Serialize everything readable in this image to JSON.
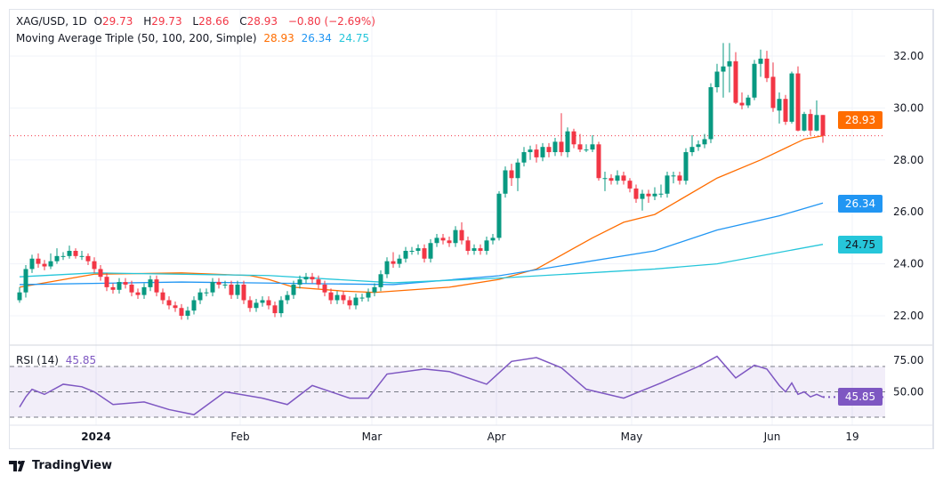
{
  "header": {
    "symbol": "XAG/USD, 1D",
    "open_label": "O",
    "open": "29.73",
    "high_label": "H",
    "high": "29.73",
    "low_label": "L",
    "low": "28.66",
    "close_label": "C",
    "close": "28.93",
    "change": "−0.80 (−2.69%)"
  },
  "ma_legend": {
    "title": "Moving Average Triple (50, 100, 200, Simple)",
    "ma50": "28.93",
    "ma100": "26.34",
    "ma200": "24.75"
  },
  "rsi_legend": {
    "title": "RSI (14)",
    "value": "45.85"
  },
  "badges": {
    "price": "28.93",
    "ma100": "26.34",
    "ma200": "24.75",
    "rsi": "45.85"
  },
  "colors": {
    "up": "#089981",
    "down": "#F23645",
    "ma50": "#FF6D00",
    "ma100": "#2196F3",
    "ma200": "#26C6DA",
    "rsi": "#7E57C2"
  },
  "time_axis": [
    "2024",
    "Feb",
    "Mar",
    "Apr",
    "May",
    "Jun",
    "19"
  ],
  "branding": "TradingView",
  "chart_data": [
    {
      "type": "candlestick",
      "title": "XAG/USD, 1D",
      "price_ticks": [
        "32.00",
        "30.00",
        "28.00",
        "26.00",
        "24.00",
        "22.00"
      ],
      "ylim": [
        21.2,
        33.0
      ],
      "last_price": 28.93,
      "ohlc": [
        [
          22.6,
          23.1,
          22.5,
          22.9
        ],
        [
          22.9,
          23.95,
          22.7,
          23.8
        ],
        [
          23.8,
          24.35,
          23.65,
          24.2
        ],
        [
          24.2,
          24.4,
          23.85,
          24.0
        ],
        [
          24.0,
          24.15,
          23.75,
          23.9
        ],
        [
          23.9,
          24.4,
          23.8,
          24.1
        ],
        [
          24.1,
          24.6,
          24.0,
          24.3
        ],
        [
          24.3,
          24.45,
          24.15,
          24.3
        ],
        [
          24.3,
          24.7,
          24.2,
          24.5
        ],
        [
          24.5,
          24.6,
          24.2,
          24.3
        ],
        [
          24.3,
          24.5,
          24.15,
          24.3
        ],
        [
          24.3,
          24.4,
          23.95,
          24.1
        ],
        [
          24.1,
          24.25,
          23.65,
          23.8
        ],
        [
          23.8,
          23.95,
          23.35,
          23.5
        ],
        [
          23.5,
          23.65,
          22.95,
          23.1
        ],
        [
          23.1,
          23.25,
          22.85,
          23.0
        ],
        [
          23.0,
          23.45,
          22.85,
          23.3
        ],
        [
          23.3,
          23.45,
          23.05,
          23.2
        ],
        [
          23.2,
          23.35,
          22.75,
          22.9
        ],
        [
          22.9,
          23.05,
          22.65,
          22.8
        ],
        [
          22.8,
          23.25,
          22.65,
          23.1
        ],
        [
          23.1,
          23.55,
          22.95,
          23.4
        ],
        [
          23.4,
          23.55,
          22.75,
          22.9
        ],
        [
          22.9,
          23.05,
          22.45,
          22.6
        ],
        [
          22.6,
          22.75,
          22.25,
          22.4
        ],
        [
          22.4,
          22.55,
          22.15,
          22.3
        ],
        [
          22.3,
          22.45,
          21.85,
          22.0
        ],
        [
          22.0,
          22.35,
          21.85,
          22.2
        ],
        [
          22.2,
          22.75,
          22.05,
          22.6
        ],
        [
          22.6,
          23.05,
          22.45,
          22.9
        ],
        [
          22.9,
          23.05,
          22.75,
          22.9
        ],
        [
          22.9,
          23.45,
          22.75,
          23.3
        ],
        [
          23.3,
          23.45,
          23.05,
          23.2
        ],
        [
          23.2,
          23.35,
          23.05,
          23.2
        ],
        [
          23.2,
          23.35,
          22.65,
          22.8
        ],
        [
          22.8,
          23.35,
          22.65,
          23.2
        ],
        [
          23.2,
          23.35,
          22.45,
          22.6
        ],
        [
          22.6,
          22.75,
          22.15,
          22.3
        ],
        [
          22.3,
          22.65,
          22.15,
          22.5
        ],
        [
          22.5,
          22.75,
          22.35,
          22.6
        ],
        [
          22.6,
          22.75,
          22.25,
          22.4
        ],
        [
          22.4,
          22.55,
          21.95,
          22.1
        ],
        [
          22.1,
          22.75,
          21.95,
          22.6
        ],
        [
          22.6,
          22.95,
          22.45,
          22.8
        ],
        [
          22.8,
          23.35,
          22.65,
          23.2
        ],
        [
          23.2,
          23.55,
          23.05,
          23.4
        ],
        [
          23.4,
          23.65,
          23.25,
          23.5
        ],
        [
          23.5,
          23.65,
          23.25,
          23.4
        ],
        [
          23.4,
          23.55,
          23.05,
          23.2
        ],
        [
          23.2,
          23.35,
          22.75,
          22.9
        ],
        [
          22.9,
          23.05,
          22.45,
          22.6
        ],
        [
          22.6,
          22.95,
          22.45,
          22.8
        ],
        [
          22.8,
          22.95,
          22.45,
          22.6
        ],
        [
          22.6,
          22.75,
          22.25,
          22.4
        ],
        [
          22.4,
          22.85,
          22.25,
          22.7
        ],
        [
          22.7,
          22.85,
          22.55,
          22.7
        ],
        [
          22.7,
          23.05,
          22.55,
          22.9
        ],
        [
          22.9,
          23.25,
          22.75,
          23.1
        ],
        [
          23.1,
          23.75,
          22.95,
          23.6
        ],
        [
          23.6,
          24.25,
          23.45,
          24.1
        ],
        [
          24.1,
          24.45,
          23.85,
          24.0
        ],
        [
          24.0,
          24.35,
          23.85,
          24.2
        ],
        [
          24.2,
          24.65,
          24.05,
          24.5
        ],
        [
          24.5,
          24.65,
          24.35,
          24.5
        ],
        [
          24.5,
          24.75,
          24.35,
          24.6
        ],
        [
          24.6,
          24.75,
          24.05,
          24.2
        ],
        [
          24.2,
          24.95,
          24.05,
          24.8
        ],
        [
          24.8,
          25.15,
          24.65,
          25.0
        ],
        [
          25.0,
          25.15,
          24.75,
          24.9
        ],
        [
          24.9,
          25.05,
          24.65,
          24.8
        ],
        [
          24.8,
          25.45,
          24.65,
          25.3
        ],
        [
          25.3,
          25.6,
          24.75,
          24.9
        ],
        [
          24.9,
          25.05,
          24.35,
          24.5
        ],
        [
          24.5,
          24.75,
          24.35,
          24.6
        ],
        [
          24.6,
          24.75,
          24.35,
          24.5
        ],
        [
          24.5,
          25.05,
          24.35,
          24.9
        ],
        [
          24.9,
          25.15,
          24.75,
          25.0
        ],
        [
          25.0,
          26.8,
          24.9,
          26.7
        ],
        [
          26.7,
          27.75,
          26.55,
          27.6
        ],
        [
          27.6,
          27.85,
          27.0,
          27.3
        ],
        [
          27.3,
          28.05,
          26.8,
          27.9
        ],
        [
          27.9,
          28.5,
          27.75,
          28.3
        ],
        [
          28.3,
          28.55,
          28.0,
          28.4
        ],
        [
          28.4,
          28.6,
          27.9,
          28.1
        ],
        [
          28.1,
          28.65,
          27.95,
          28.5
        ],
        [
          28.5,
          28.65,
          28.1,
          28.3
        ],
        [
          28.3,
          28.85,
          28.15,
          28.7
        ],
        [
          28.7,
          29.8,
          28.15,
          28.3
        ],
        [
          28.3,
          29.25,
          28.1,
          29.1
        ],
        [
          29.1,
          29.2,
          28.45,
          28.6
        ],
        [
          28.6,
          29.0,
          28.3,
          28.4
        ],
        [
          28.4,
          28.6,
          28.3,
          28.4
        ],
        [
          28.4,
          28.95,
          28.3,
          28.6
        ],
        [
          28.6,
          28.7,
          27.2,
          27.3
        ],
        [
          27.3,
          27.55,
          26.8,
          27.3
        ],
        [
          27.3,
          27.45,
          27.05,
          27.2
        ],
        [
          27.2,
          27.6,
          27.05,
          27.4
        ],
        [
          27.4,
          27.55,
          27.05,
          27.2
        ],
        [
          27.2,
          27.3,
          26.75,
          26.9
        ],
        [
          26.9,
          27.05,
          26.35,
          26.5
        ],
        [
          26.5,
          26.85,
          26.05,
          26.7
        ],
        [
          26.7,
          26.85,
          26.35,
          26.6
        ],
        [
          26.6,
          26.95,
          26.45,
          26.7
        ],
        [
          26.7,
          27.05,
          26.55,
          26.7
        ],
        [
          26.7,
          27.55,
          26.55,
          27.4
        ],
        [
          27.4,
          27.55,
          27.1,
          27.4
        ],
        [
          27.4,
          27.55,
          27.05,
          27.2
        ],
        [
          27.2,
          28.45,
          27.05,
          28.3
        ],
        [
          28.3,
          28.95,
          28.15,
          28.5
        ],
        [
          28.5,
          28.75,
          28.35,
          28.6
        ],
        [
          28.6,
          29.0,
          28.45,
          28.8
        ],
        [
          28.8,
          30.95,
          28.65,
          30.8
        ],
        [
          30.8,
          31.7,
          30.6,
          31.4
        ],
        [
          31.4,
          32.5,
          30.4,
          31.6
        ],
        [
          31.6,
          32.5,
          30.6,
          31.8
        ],
        [
          31.8,
          32.15,
          30.15,
          30.2
        ],
        [
          30.2,
          30.6,
          29.95,
          30.1
        ],
        [
          30.1,
          30.5,
          30.0,
          30.4
        ],
        [
          30.4,
          31.85,
          30.3,
          31.7
        ],
        [
          31.7,
          32.25,
          31.2,
          31.9
        ],
        [
          31.9,
          32.2,
          31.0,
          31.15
        ],
        [
          31.2,
          31.75,
          29.85,
          30.0
        ],
        [
          29.9,
          30.6,
          29.4,
          30.35
        ],
        [
          30.35,
          30.5,
          29.35,
          29.47
        ],
        [
          29.47,
          31.4,
          29.4,
          31.33
        ],
        [
          31.33,
          31.6,
          29.1,
          29.13
        ],
        [
          29.13,
          29.85,
          29.1,
          29.77
        ],
        [
          29.77,
          29.95,
          28.95,
          29.13
        ],
        [
          29.13,
          30.29,
          29.1,
          29.73
        ],
        [
          29.73,
          29.73,
          28.66,
          28.93
        ]
      ],
      "moving_averages": [
        {
          "name": "50",
          "points": [
            [
              0,
              23.1
            ],
            [
              12,
              23.6
            ],
            [
              26,
              23.65
            ],
            [
              37,
              23.55
            ],
            [
              40,
              23.4
            ],
            [
              44,
              23.1
            ],
            [
              52,
              22.95
            ],
            [
              57,
              22.9
            ],
            [
              69,
              23.1
            ],
            [
              77,
              23.4
            ],
            [
              83,
              23.8
            ],
            [
              92,
              25.0
            ],
            [
              97,
              25.6
            ],
            [
              102,
              25.9
            ],
            [
              112,
              27.3
            ],
            [
              119,
              28.0
            ],
            [
              126,
              28.8
            ],
            [
              129,
              28.93
            ]
          ]
        },
        {
          "name": "100",
          "points": [
            [
              0,
              23.2
            ],
            [
              26,
              23.3
            ],
            [
              60,
              23.2
            ],
            [
              77,
              23.54
            ],
            [
              102,
              24.5
            ],
            [
              112,
              25.3
            ],
            [
              122,
              25.85
            ],
            [
              129,
              26.34
            ]
          ]
        },
        {
          "name": "200",
          "points": [
            [
              0,
              23.5
            ],
            [
              12,
              23.65
            ],
            [
              40,
              23.55
            ],
            [
              60,
              23.27
            ],
            [
              77,
              23.45
            ],
            [
              102,
              23.8
            ],
            [
              112,
              24.0
            ],
            [
              129,
              24.75
            ]
          ]
        }
      ]
    },
    {
      "type": "line",
      "title": "RSI (14)",
      "ylim": [
        24,
        82
      ],
      "levels": [
        70,
        50,
        30
      ],
      "y_ticks": [
        "75.00",
        "50.00"
      ],
      "series": [
        {
          "name": "RSI (14)",
          "points": [
            [
              0,
              38
            ],
            [
              1,
              46
            ],
            [
              2,
              52
            ],
            [
              4,
              48
            ],
            [
              7,
              56
            ],
            [
              10,
              54
            ],
            [
              12,
              50
            ],
            [
              15,
              40
            ],
            [
              20,
              42
            ],
            [
              24,
              36
            ],
            [
              28,
              32
            ],
            [
              33,
              50
            ],
            [
              39,
              45
            ],
            [
              43,
              40
            ],
            [
              47,
              55
            ],
            [
              53,
              45
            ],
            [
              56,
              45
            ],
            [
              59,
              64
            ],
            [
              65,
              68
            ],
            [
              69,
              66
            ],
            [
              75,
              56
            ],
            [
              79,
              74
            ],
            [
              83,
              77
            ],
            [
              87,
              69
            ],
            [
              91,
              52
            ],
            [
              97,
              45
            ],
            [
              103,
              57
            ],
            [
              109,
              70
            ],
            [
              112,
              78
            ],
            [
              115,
              61
            ],
            [
              118,
              71
            ],
            [
              120,
              68
            ],
            [
              122,
              55
            ],
            [
              123,
              50
            ],
            [
              124,
              57
            ],
            [
              125,
              48
            ],
            [
              126,
              50
            ],
            [
              127,
              46
            ],
            [
              128,
              48
            ],
            [
              129,
              45.85
            ]
          ]
        }
      ]
    }
  ]
}
